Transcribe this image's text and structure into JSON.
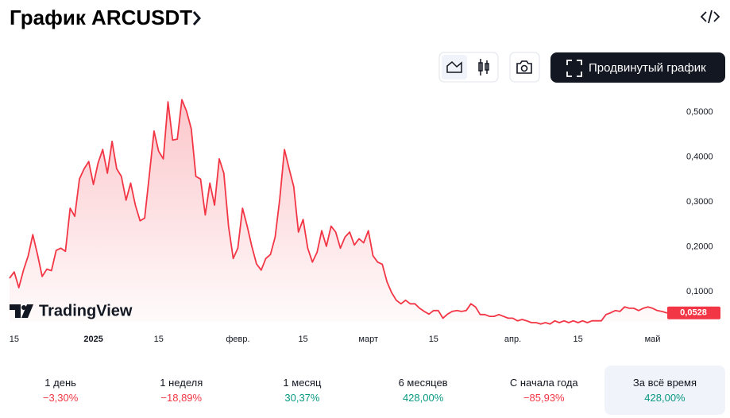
{
  "header": {
    "title": "График ARCUSDT"
  },
  "toolbar": {
    "advanced_button": "Продвинутый график"
  },
  "watermark": "TradingView",
  "chart_data": {
    "type": "line",
    "color": "#f23645",
    "categories": [
      null,
      "15",
      null,
      null,
      null,
      null,
      null,
      null,
      null,
      null,
      null,
      null,
      null,
      null,
      null,
      null,
      null,
      null,
      "2025",
      null,
      null,
      null,
      null,
      null,
      null,
      null,
      null,
      null,
      null,
      null,
      null,
      null,
      "15",
      null,
      null,
      null,
      null,
      null,
      null,
      null,
      null,
      null,
      null,
      null,
      null,
      null,
      null,
      null,
      null,
      "февр.",
      null,
      null,
      null,
      null,
      null,
      null,
      null,
      null,
      null,
      null,
      null,
      null,
      null,
      "15",
      null,
      null,
      null,
      null,
      null,
      null,
      null,
      null,
      null,
      null,
      null,
      null,
      null,
      "март",
      null,
      null,
      null,
      null,
      null,
      null,
      null,
      null,
      null,
      null,
      null,
      null,
      null,
      "15",
      null,
      null,
      null,
      null,
      null,
      null,
      null,
      null,
      null,
      null,
      null,
      null,
      null,
      null,
      null,
      null,
      "апр.",
      null,
      null,
      null,
      null,
      null,
      null,
      null,
      null,
      null,
      null,
      null,
      null,
      null,
      "15",
      null,
      null,
      null,
      null,
      null,
      null,
      null,
      null,
      null,
      null,
      null,
      null,
      null,
      null,
      null,
      "май",
      null,
      null,
      null,
      null
    ],
    "values": [
      0.13,
      0.144,
      0.109,
      0.148,
      0.18,
      0.227,
      0.183,
      0.134,
      0.15,
      0.147,
      0.192,
      0.197,
      0.19,
      0.286,
      0.268,
      0.351,
      0.374,
      0.39,
      0.339,
      0.387,
      0.417,
      0.364,
      0.435,
      0.374,
      0.357,
      0.304,
      0.342,
      0.293,
      0.258,
      0.264,
      0.36,
      0.458,
      0.413,
      0.396,
      0.523,
      0.438,
      0.44,
      0.528,
      0.502,
      0.463,
      0.357,
      0.351,
      0.271,
      0.342,
      0.293,
      0.396,
      0.364,
      0.246,
      0.174,
      0.197,
      0.286,
      0.246,
      0.201,
      0.162,
      0.148,
      0.174,
      0.183,
      0.222,
      0.307,
      0.417,
      0.374,
      0.334,
      0.233,
      0.261,
      0.197,
      0.166,
      0.188,
      0.236,
      0.201,
      0.246,
      0.233,
      0.197,
      0.222,
      0.233,
      0.204,
      0.218,
      0.209,
      0.236,
      0.18,
      0.166,
      0.161,
      0.122,
      0.098,
      0.081,
      0.073,
      0.081,
      0.073,
      0.073,
      0.063,
      0.056,
      0.05,
      0.058,
      0.058,
      0.041,
      0.05,
      0.056,
      0.058,
      0.056,
      0.058,
      0.073,
      0.066,
      0.049,
      0.049,
      0.045,
      0.045,
      0.049,
      0.045,
      0.041,
      0.041,
      0.035,
      0.038,
      0.035,
      0.031,
      0.031,
      0.028,
      0.031,
      0.028,
      0.035,
      0.031,
      0.035,
      0.031,
      0.035,
      0.031,
      0.035,
      0.031,
      0.035,
      0.035,
      0.035,
      0.049,
      0.053,
      0.058,
      0.056,
      0.066,
      0.063,
      0.063,
      0.058,
      0.063,
      0.066,
      0.063,
      0.058,
      0.056,
      0.053,
      0.0528
    ],
    "last_value_label": "0,0528",
    "ylim": [
      0,
      0.55
    ],
    "yticks": [
      {
        "value": 0.1,
        "label": "0,1000"
      },
      {
        "value": 0.2,
        "label": "0,2000"
      },
      {
        "value": 0.3,
        "label": "0,3000"
      },
      {
        "value": 0.4,
        "label": "0,4000"
      },
      {
        "value": 0.5,
        "label": "0,5000"
      }
    ],
    "grid": false
  },
  "periods": [
    {
      "label": "1 день",
      "change": "−3,30%"
    },
    {
      "label": "1 неделя",
      "change": "−18,89%"
    },
    {
      "label": "1 месяц",
      "change": "30,37%"
    },
    {
      "label": "6 месяцев",
      "change": "428,00%"
    },
    {
      "label": "С начала года",
      "change": "−85,93%"
    },
    {
      "label": "За всё время",
      "change": "428,00%"
    }
  ],
  "selected_period": 5
}
